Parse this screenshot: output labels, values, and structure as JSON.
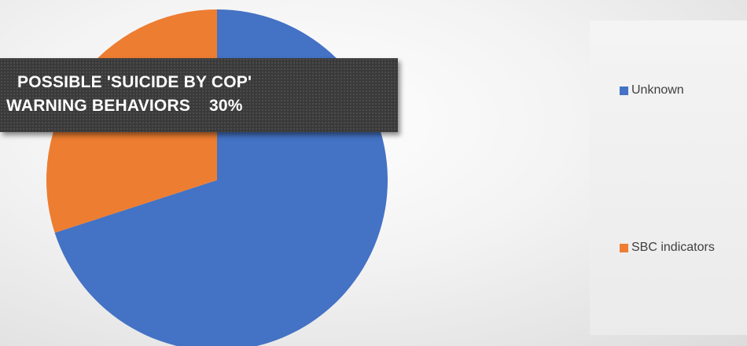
{
  "chart_data": {
    "type": "pie",
    "slices": [
      {
        "label": "Unknown",
        "value": 70,
        "color": "#4472C4"
      },
      {
        "label": "SBC indicators",
        "value": 30,
        "color": "#ED7D31"
      }
    ],
    "callout": {
      "line1": "POSSIBLE 'SUICIDE BY COP'",
      "line2": "WARNING BEHAVIORS",
      "value": "30%"
    },
    "legend": {
      "position": "right",
      "items": [
        {
          "label": "Unknown",
          "color": "#4472C4"
        },
        {
          "label": "SBC indicators",
          "color": "#ED7D31"
        }
      ]
    }
  }
}
